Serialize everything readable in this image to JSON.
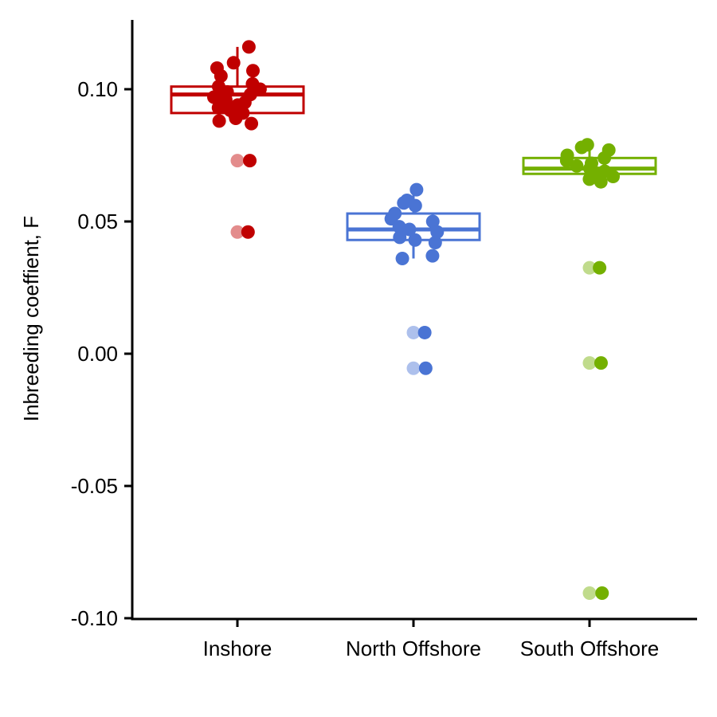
{
  "chart_data": {
    "type": "box",
    "title": "",
    "xlabel": "",
    "ylabel": "Inbreeding coeffient, F",
    "ylim": [
      -0.1,
      0.125
    ],
    "yticks": [
      "-0.10",
      "-0.05",
      "0.00",
      "0.05",
      "0.10"
    ],
    "ytick_values": [
      -0.1,
      -0.05,
      0.0,
      0.05,
      0.1
    ],
    "categories": [
      "Inshore",
      "North Offshore",
      "South Offshore"
    ],
    "grid": false,
    "legend": "none",
    "series": [
      {
        "category": "Inshore",
        "color": "#C00000",
        "box": {
          "q1": 0.091,
          "median": 0.098,
          "q3": 0.101,
          "whisker_low": 0.089,
          "whisker_high": 0.116
        },
        "points": [
          0.116,
          0.108,
          0.11,
          0.107,
          0.105,
          0.102,
          0.101,
          0.1,
          0.099,
          0.098,
          0.097,
          0.096,
          0.095,
          0.094,
          0.093,
          0.092,
          0.091,
          0.09,
          0.089,
          0.088,
          0.087,
          0.073,
          0.046
        ],
        "outliers": [
          0.073,
          0.046
        ]
      },
      {
        "category": "North Offshore",
        "color": "#4A74D4",
        "box": {
          "q1": 0.043,
          "median": 0.047,
          "q3": 0.053,
          "whisker_low": 0.036,
          "whisker_high": 0.062
        },
        "points": [
          0.062,
          0.058,
          0.057,
          0.056,
          0.053,
          0.051,
          0.05,
          0.048,
          0.047,
          0.046,
          0.044,
          0.043,
          0.042,
          0.037,
          0.036,
          0.008,
          -0.0055
        ],
        "outliers": [
          0.008,
          -0.0055
        ]
      },
      {
        "category": "South Offshore",
        "color": "#74B000",
        "box": {
          "q1": 0.068,
          "median": 0.07,
          "q3": 0.074,
          "whisker_low": 0.065,
          "whisker_high": 0.079
        },
        "points": [
          0.079,
          0.078,
          0.077,
          0.075,
          0.074,
          0.073,
          0.072,
          0.071,
          0.07,
          0.069,
          0.068,
          0.067,
          0.066,
          0.065,
          0.0325,
          -0.0035,
          -0.0905
        ],
        "outliers": [
          0.0325,
          -0.0035,
          -0.0905
        ]
      }
    ]
  }
}
